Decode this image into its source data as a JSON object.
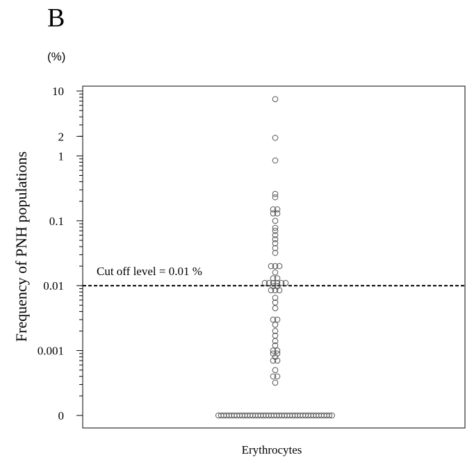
{
  "panel_letter": "B",
  "unit_label": "(%)",
  "chart_data": {
    "type": "scatter",
    "title": "",
    "xlabel": "Erythrocytes",
    "ylabel": "Frequency of PNH populations",
    "yscale": "log",
    "ylim": [
      0.0001,
      10
    ],
    "yticks": [
      {
        "value": 10,
        "label": "10"
      },
      {
        "value": 2,
        "label": "2"
      },
      {
        "value": 1,
        "label": "1"
      },
      {
        "value": 0.1,
        "label": "0.1"
      },
      {
        "value": 0.01,
        "label": "0.01"
      },
      {
        "value": 0.001,
        "label": "0.001"
      },
      {
        "value": 0.0001,
        "label": "0"
      }
    ],
    "cutoff": {
      "value": 0.01,
      "label": "Cut off level = 0.01 %",
      "style": "dashed"
    },
    "grid": false,
    "points": [
      7.5,
      1.9,
      0.85,
      0.26,
      0.23,
      0.15,
      0.14,
      0.13,
      0.12,
      0.1,
      0.078,
      0.07,
      0.06,
      0.052,
      0.045,
      0.038,
      0.032,
      0.02,
      0.02,
      0.02,
      0.016,
      0.013,
      0.012,
      0.011,
      0.0105,
      0.0102,
      0.0101,
      0.01,
      0.01,
      0.0098,
      0.0095,
      0.0085,
      0.008,
      0.008,
      0.0065,
      0.0055,
      0.0045,
      0.003,
      0.0028,
      0.0025,
      0.002,
      0.0017,
      0.0014,
      0.0012,
      0.001,
      0.001,
      0.0009,
      0.00085,
      0.0008,
      0.0007,
      0.00065,
      0.0005,
      0.0004,
      0.0004,
      0.00032
    ],
    "zero_count": 44,
    "zero_value": 0
  }
}
